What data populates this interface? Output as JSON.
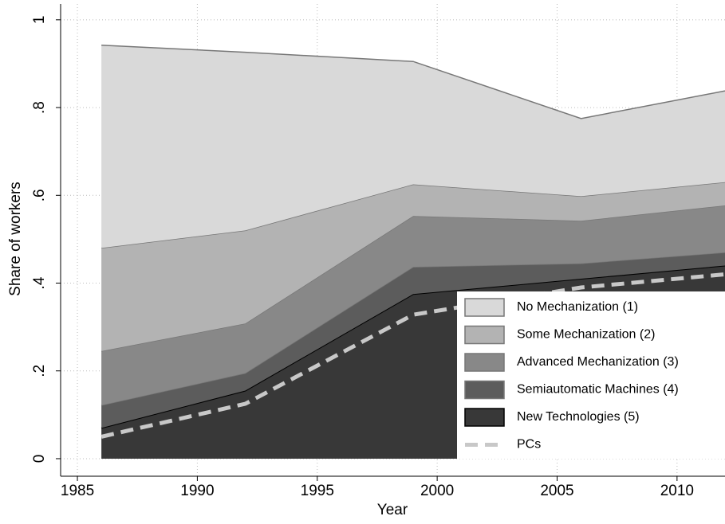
{
  "chart_data": {
    "type": "stacked_area",
    "x_label": "Year",
    "y_label": "Share of workers",
    "x": [
      1986,
      1992,
      1999,
      2006,
      2012
    ],
    "series": [
      {
        "name": "No Mechanization (1)",
        "color": "#d9d9d9",
        "values": [
          0.462,
          0.406,
          0.28,
          0.177,
          0.208
        ]
      },
      {
        "name": "Some Mechanization (2)",
        "color": "#b3b3b3",
        "values": [
          0.235,
          0.212,
          0.072,
          0.056,
          0.053
        ]
      },
      {
        "name": "Advanced Mechanization (3)",
        "color": "#888888",
        "values": [
          0.123,
          0.113,
          0.116,
          0.097,
          0.107
        ]
      },
      {
        "name": "Semiautomatic Machines (4)",
        "color": "#5c5c5c",
        "values": [
          0.052,
          0.04,
          0.062,
          0.035,
          0.03
        ]
      },
      {
        "name": "New Technologies (5)",
        "color": "#383838",
        "values": [
          0.07,
          0.155,
          0.375,
          0.41,
          0.44
        ]
      },
      {
        "name": "PCs",
        "color": "#c8c8c8",
        "kind": "dashed-line",
        "values": [
          0.05,
          0.125,
          0.328,
          0.39,
          0.42
        ]
      }
    ],
    "xlim": [
      1984.3,
      2012
    ],
    "ylim": [
      -0.04,
      1.036
    ],
    "xticks": [
      1985,
      1990,
      1995,
      2000,
      2005,
      2010
    ],
    "yticks": [
      {
        "value": 0,
        "label": "0"
      },
      {
        "value": 0.2,
        "label": ".2"
      },
      {
        "value": 0.4,
        "label": ".4"
      },
      {
        "value": 0.6,
        "label": ".6"
      },
      {
        "value": 0.8,
        "label": ".8"
      },
      {
        "value": 1,
        "label": "1"
      }
    ],
    "grid": true,
    "legend": "bottom-right"
  }
}
